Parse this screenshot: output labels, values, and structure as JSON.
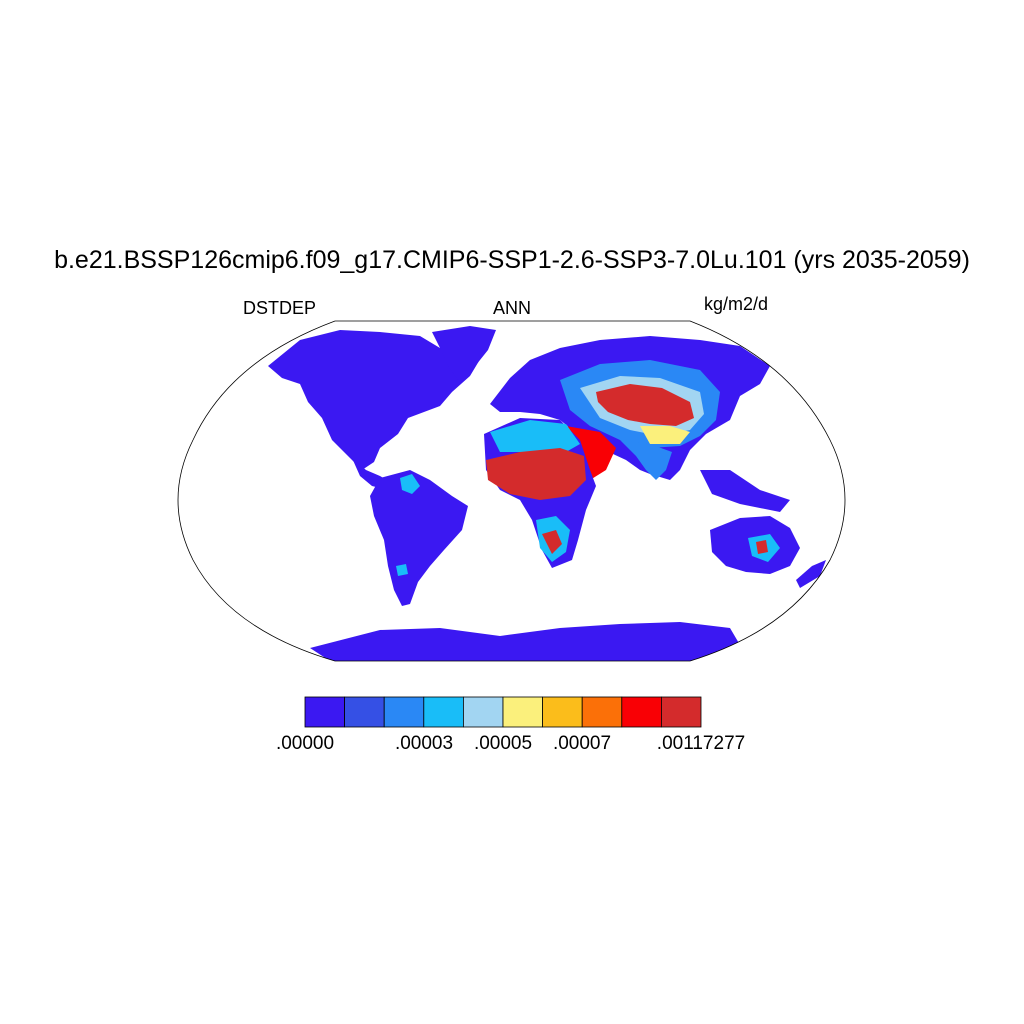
{
  "title": "b.e21.BSSP126cmip6.f09_g17.CMIP6-SSP1-2.6-SSP3-7.0Lu.101 (yrs 2035-2059)",
  "left_label": "DSTDEP",
  "center_label": "ANN",
  "right_label": "kg/m2/d",
  "map": {
    "projection": "robinson",
    "background": "#ffffff",
    "land_low_color": "#3b18f2",
    "colors": {
      "c0": "#3b18f2",
      "c1": "#3550e5",
      "c2": "#2a88f5",
      "c3": "#19bdf8",
      "c4": "#a2d5f2",
      "c5": "#fbf07c",
      "c6": "#fbbd1b",
      "c7": "#fb7008",
      "c8": "#f90005",
      "c9": "#d42b2c"
    }
  },
  "colorbar": {
    "colors": [
      "#3b18f2",
      "#3550e5",
      "#2a88f5",
      "#19bdf8",
      "#a2d5f2",
      "#fbf07c",
      "#fbbd1b",
      "#fb7008",
      "#f90005",
      "#d42b2c"
    ],
    "labels": [
      ".00000",
      ".00003",
      ".00005",
      ".00007",
      ".00117277"
    ]
  }
}
